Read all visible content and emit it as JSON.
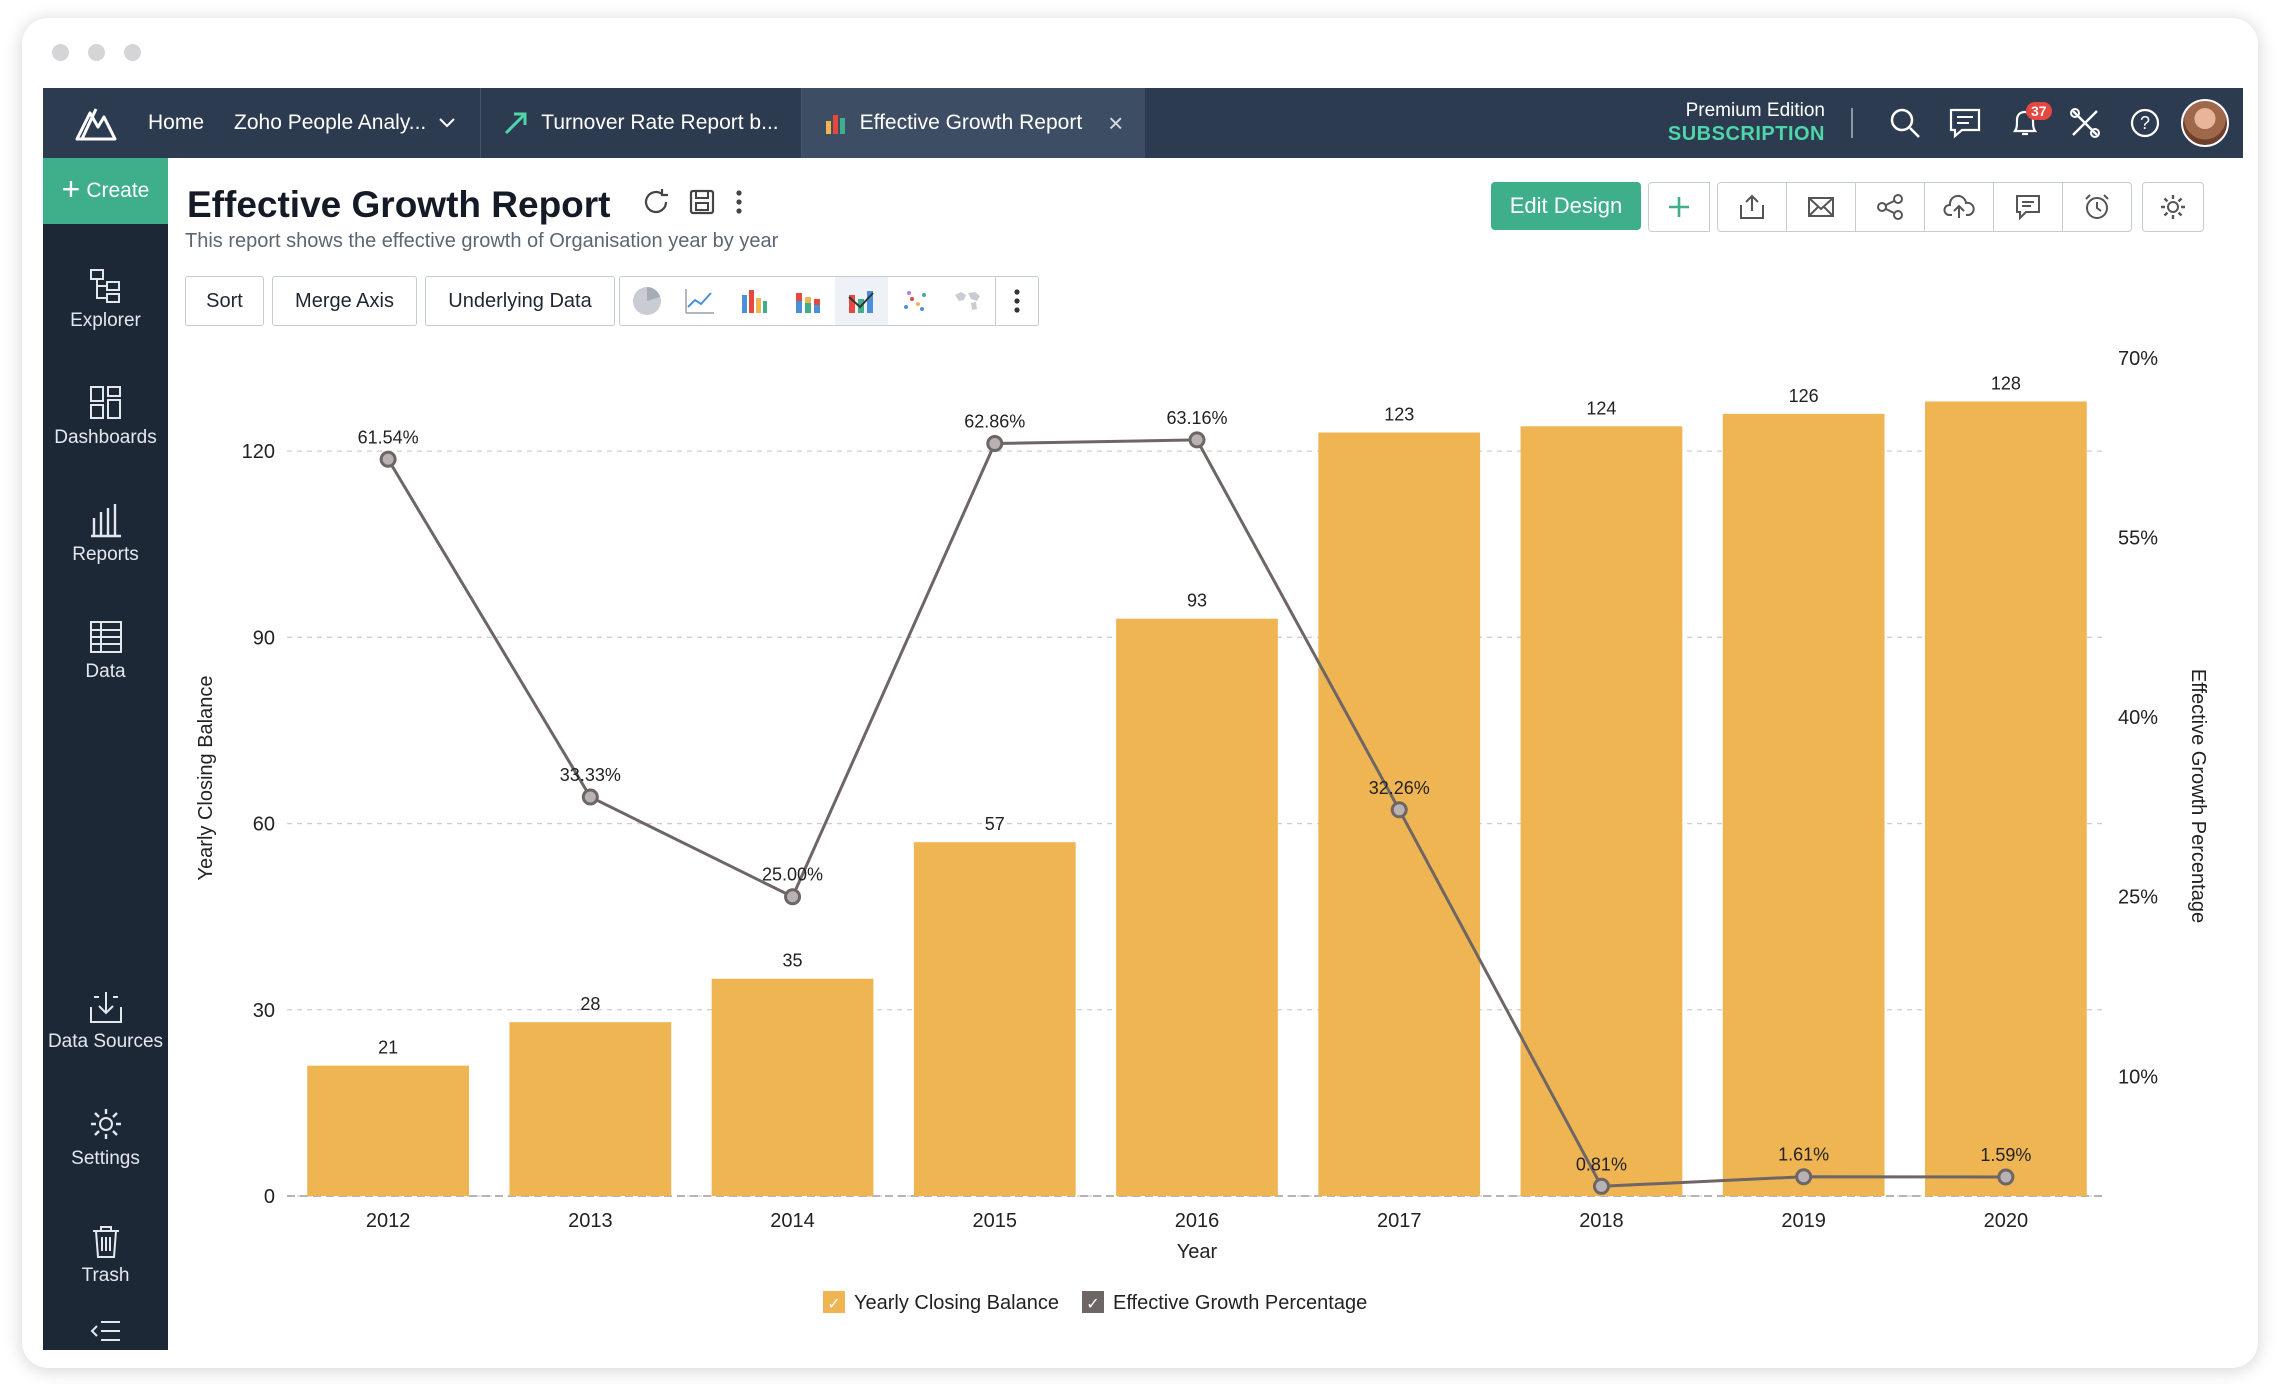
{
  "topbar": {
    "home_label": "Home",
    "workspace_label": "Zoho People Analy...",
    "tabs": [
      {
        "label": "Turnover Rate Report b..."
      },
      {
        "label": "Effective Growth Report"
      }
    ],
    "edition_label": "Premium Edition",
    "subscription_label": "SUBSCRIPTION",
    "notification_count": "37"
  },
  "sidebar": {
    "create_label": "Create",
    "items": [
      {
        "label": "Explorer",
        "icon": "explorer-icon"
      },
      {
        "label": "Dashboards",
        "icon": "dashboards-icon"
      },
      {
        "label": "Reports",
        "icon": "reports-icon"
      },
      {
        "label": "Data",
        "icon": "data-icon"
      },
      {
        "label": "Data Sources",
        "icon": "data-sources-icon"
      },
      {
        "label": "Settings",
        "icon": "settings-icon"
      },
      {
        "label": "Trash",
        "icon": "trash-icon"
      }
    ]
  },
  "report": {
    "title": "Effective Growth Report",
    "description": "This report shows the effective growth of Organisation year by year",
    "edit_design_label": "Edit Design"
  },
  "toolbar": {
    "sort_label": "Sort",
    "merge_axis_label": "Merge Axis",
    "underlying_data_label": "Underlying Data"
  },
  "colors": {
    "bar": "#f0b553",
    "line": "#6e6565",
    "accent_green": "#3fae8a",
    "topbar": "#2c3b50",
    "sidebar": "#1d2837"
  },
  "chart_data": {
    "type": "bar",
    "xlabel": "Year",
    "ylabel": "Yearly Closing Balance",
    "y2label": "Effective Growth Percentage",
    "categories": [
      "2012",
      "2013",
      "2014",
      "2015",
      "2016",
      "2017",
      "2018",
      "2019",
      "2020"
    ],
    "ylim": [
      0,
      135
    ],
    "yticks": [
      "0",
      "30",
      "60",
      "90",
      "120"
    ],
    "y2lim": [
      0,
      70
    ],
    "y2ticks": [
      "10%",
      "25%",
      "40%",
      "55%",
      "70%"
    ],
    "grid": true,
    "legend_position": "bottom",
    "series": [
      {
        "name": "Yearly Closing Balance",
        "type": "bar",
        "values": [
          21,
          28,
          35,
          57,
          93,
          123,
          124,
          126,
          128
        ],
        "labels": [
          "21",
          "28",
          "35",
          "57",
          "93",
          "123",
          "124",
          "126",
          "128"
        ]
      },
      {
        "name": "Effective Growth Percentage",
        "type": "line",
        "axis": "right",
        "values": [
          61.54,
          33.33,
          25.0,
          62.86,
          63.16,
          32.26,
          0.81,
          1.61,
          1.59
        ],
        "labels": [
          "61.54%",
          "33.33%",
          "25.00%",
          "62.86%",
          "63.16%",
          "32.26%",
          "0.81%",
          "1.61%",
          "1.59%"
        ]
      }
    ]
  }
}
